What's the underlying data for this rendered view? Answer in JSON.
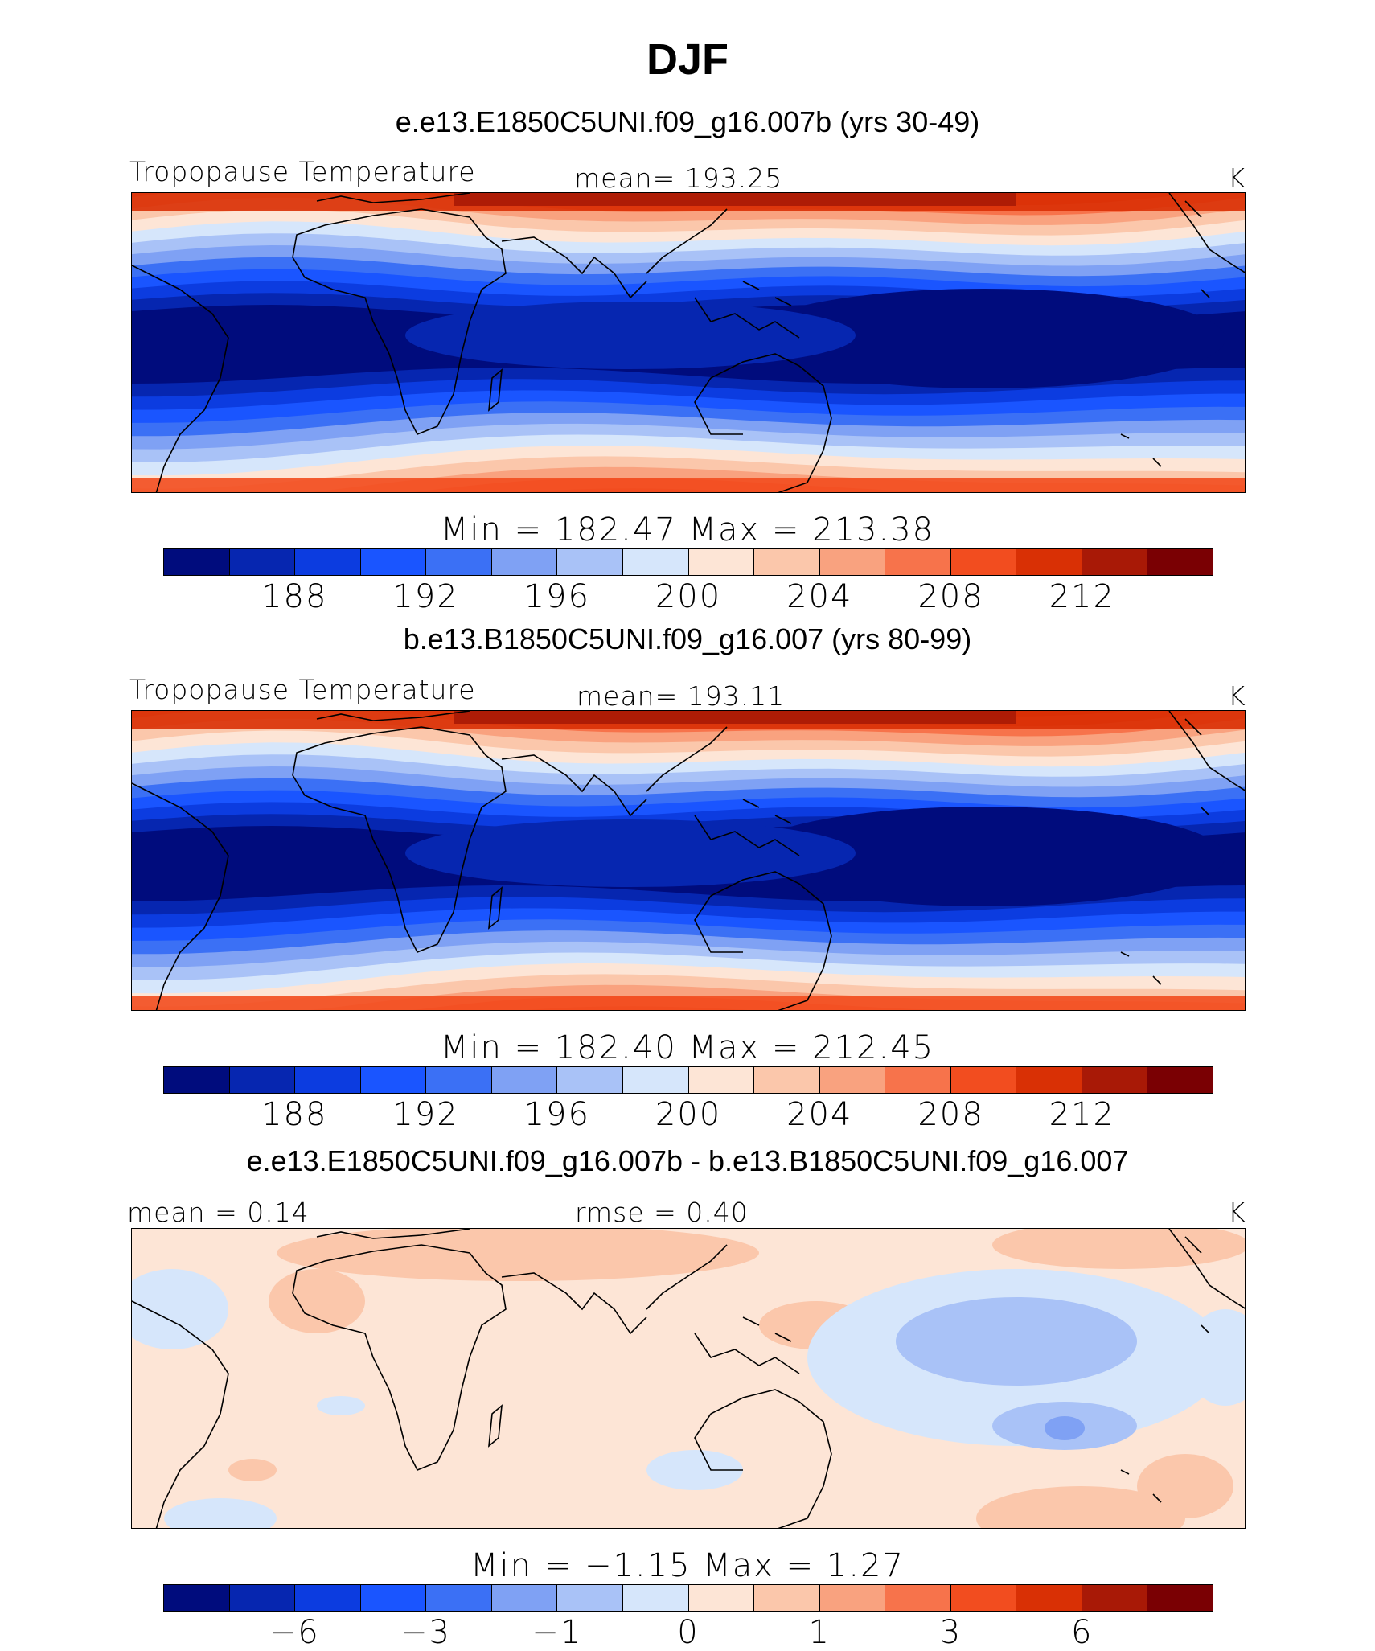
{
  "figure": {
    "title": "DJF"
  },
  "colors": {
    "abs_scale": [
      "#000c7d",
      "#0626b0",
      "#0c3ce0",
      "#1a55ff",
      "#3b70f5",
      "#7fa1f4",
      "#a9c2f7",
      "#d6e6fb",
      "#fde5d6",
      "#fbc7ab",
      "#f9a27f",
      "#f7734b",
      "#f24d1f",
      "#d93005",
      "#a81906",
      "#7a0003"
    ],
    "diff_scale": [
      "#000c7d",
      "#0626b0",
      "#0c3ce0",
      "#1a55ff",
      "#3b70f5",
      "#7fa1f4",
      "#a9c2f7",
      "#d6e6fb",
      "#fde5d6",
      "#fbc7ab",
      "#f9a27f",
      "#f7734b",
      "#f24d1f",
      "#d93005",
      "#a81906",
      "#7a0003"
    ]
  },
  "chart_data": [
    {
      "type": "heatmap",
      "title": "e.e13.E1850C5UNI.f09_g16.007b (yrs 30-49)",
      "left_label": "Tropopause Temperature",
      "center_label": "mean=  193.25",
      "units": "K",
      "min_max": "Min  =  182.47  Max  =  213.38",
      "colorbar_ticks": [
        "188",
        "192",
        "196",
        "200",
        "204",
        "208",
        "212"
      ],
      "colorbar_tick_positions": [
        2,
        4,
        6,
        8,
        10,
        12,
        14
      ],
      "levels": 16,
      "field": {
        "equator_min": 183.5,
        "pole_max": 211.0,
        "warm_pool_min": 182.5,
        "north_pole_max": 213.0
      }
    },
    {
      "type": "heatmap",
      "title": "b.e13.B1850C5UNI.f09_g16.007 (yrs 80-99)",
      "left_label": "Tropopause Temperature",
      "center_label": "mean=  193.11",
      "units": "K",
      "min_max": "Min  =  182.40  Max  =  212.45",
      "colorbar_ticks": [
        "188",
        "192",
        "196",
        "200",
        "204",
        "208",
        "212"
      ],
      "colorbar_tick_positions": [
        2,
        4,
        6,
        8,
        10,
        12,
        14
      ],
      "levels": 16,
      "field": {
        "equator_min": 183.4,
        "pole_max": 210.5,
        "warm_pool_min": 182.4,
        "north_pole_max": 212.4
      }
    },
    {
      "type": "heatmap",
      "title": "e.e13.E1850C5UNI.f09_g16.007b - b.e13.B1850C5UNI.f09_g16.007",
      "left_label": "mean  =    0.14",
      "center_label": "rmse  =    0.40",
      "units": "K",
      "min_max": "Min  =   −1.15  Max  =    1.27",
      "colorbar_ticks": [
        "−6",
        "−3",
        "−1",
        "0",
        "1",
        "3",
        "6"
      ],
      "colorbar_tick_positions": [
        2,
        4,
        6,
        8,
        10,
        12,
        14
      ],
      "levels": 16,
      "field": {
        "min": -1.15,
        "max": 1.27
      }
    }
  ]
}
